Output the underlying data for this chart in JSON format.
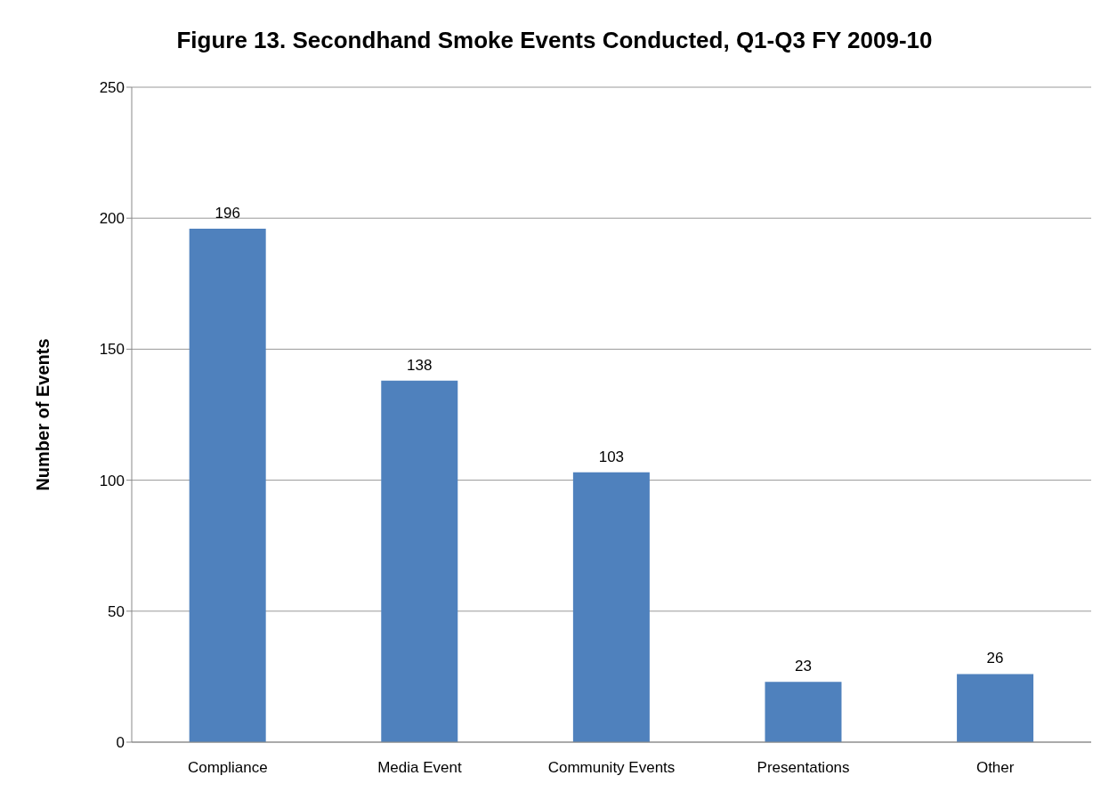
{
  "chart_data": {
    "type": "bar",
    "title": "Figure 13. Secondhand Smoke Events Conducted, Q1-Q3 FY 2009-10",
    "ylabel": "Number of Events",
    "categories": [
      "Compliance",
      "Media Event",
      "Community Events",
      "Presentations",
      "Other"
    ],
    "values": [
      196,
      138,
      103,
      23,
      26
    ],
    "color": "#4f81bd",
    "ylim": [
      0,
      250
    ],
    "yticks": [
      0,
      50,
      100,
      150,
      200,
      250
    ],
    "grid": "y",
    "data_labels": true
  }
}
